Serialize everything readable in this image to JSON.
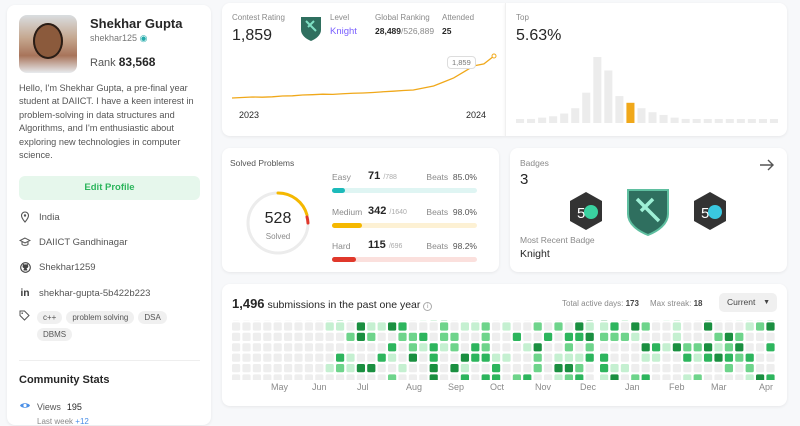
{
  "profile": {
    "name": "Shekhar Gupta",
    "handle": "shekhar125",
    "rank_label": "Rank",
    "rank_value": "83,568",
    "bio": "Hello, I'm Shekhar Gupta, a pre-final year student at DAIICT. I have a keen interest in problem-solving in data structures and Algorithms, and I'm enthusiastic about exploring new technologies in computer science.",
    "edit_label": "Edit Profile",
    "location": "India",
    "school": "DAIICT Gandhinagar",
    "github": "Shekhar1259",
    "linkedin": "shekhar-gupta-5b422b223",
    "tags": [
      "c++",
      "problem solving",
      "DSA",
      "DBMS"
    ],
    "community_title": "Community Stats",
    "views_label": "Views",
    "views_value": "195",
    "last_week": "Last week",
    "last_week_delta": "+12"
  },
  "contest": {
    "rating_label": "Contest Rating",
    "rating_value": "1,859",
    "level_label": "Level",
    "level_value": "Knight",
    "global_label": "Global Ranking",
    "global_value": "28,489",
    "global_total": "/526,889",
    "attended_label": "Attended",
    "attended_value": "25",
    "x_start": "2023",
    "x_end": "2024",
    "tooltip": "1,859",
    "accent": "#f0a81a",
    "rating_series": [
      1440,
      1445,
      1450,
      1448,
      1452,
      1460,
      1462,
      1470,
      1473,
      1478,
      1476,
      1482,
      1487,
      1490,
      1495,
      1502,
      1508,
      1515,
      1520,
      1540,
      1560,
      1600,
      1640,
      1700,
      1760,
      1780,
      1859
    ]
  },
  "top": {
    "label": "Top",
    "value": "5.63%",
    "bars": [
      4,
      6,
      8,
      10,
      14,
      22,
      45,
      98,
      78,
      40,
      30,
      22,
      16,
      12,
      8,
      6,
      5,
      4,
      3,
      3,
      2,
      2,
      2,
      2
    ],
    "highlight_index": 10,
    "highlight_color": "#f0a81a"
  },
  "solved": {
    "title": "Solved Problems",
    "total": "528",
    "total_label": "Solved",
    "easy": {
      "label": "Easy",
      "value": "71",
      "total": "/788",
      "beats_label": "Beats",
      "beats": "85.0%",
      "color": "#1cbaba",
      "bg": "#dff5f3",
      "fraction": 0.09
    },
    "medium": {
      "label": "Medium",
      "value": "342",
      "total": "/1640",
      "beats_label": "Beats",
      "beats": "98.0%",
      "color": "#f5b800",
      "bg": "#fdf1d4",
      "fraction": 0.21
    },
    "hard": {
      "label": "Hard",
      "value": "115",
      "total": "/696",
      "beats_label": "Beats",
      "beats": "98.2%",
      "color": "#e0382b",
      "bg": "#fbe0dd",
      "fraction": 0.165
    }
  },
  "badges": {
    "title": "Badges",
    "count": "3",
    "recent_label": "Most Recent Badge",
    "recent_value": "Knight"
  },
  "submissions": {
    "count": "1,496",
    "text": "submissions in the past one year",
    "active_label": "Total active days:",
    "active_value": "173",
    "streak_label": "Max streak:",
    "streak_value": "18",
    "dropdown": "Current",
    "months": [
      "May",
      "Jun",
      "Jul",
      "Aug",
      "Sep",
      "Oct",
      "Nov",
      "Dec",
      "Jan",
      "Feb",
      "Mar",
      "Apr"
    ]
  }
}
